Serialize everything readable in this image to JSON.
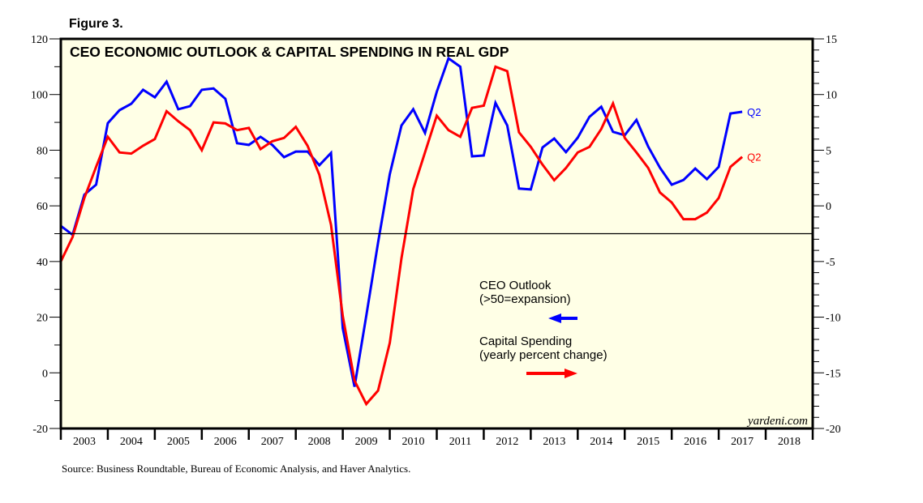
{
  "figure_label": "Figure 3.",
  "source": "Source: Business Roundtable, Bureau of Economic Analysis, and Haver Analytics.",
  "watermark": "yardeni.com",
  "colors": {
    "ceo": "#0000ff",
    "capex": "#ff0000",
    "plot_bg": "#ffffe6",
    "frame": "#000000"
  },
  "chart_data": {
    "type": "line",
    "title": "CEO ECONOMIC OUTLOOK & CAPITAL SPENDING IN REAL GDP",
    "xlabel": "",
    "x_tick_labels": [
      "2003",
      "2004",
      "2005",
      "2006",
      "2007",
      "2008",
      "2009",
      "2010",
      "2011",
      "2012",
      "2013",
      "2014",
      "2015",
      "2016",
      "2017",
      "2018"
    ],
    "x_range": [
      2003.0,
      2019.0
    ],
    "left_axis": {
      "range": [
        -20,
        120
      ],
      "ticks": [
        -20,
        0,
        20,
        40,
        60,
        80,
        100,
        120
      ],
      "tick_labels": [
        "-20",
        "0",
        "20",
        "40",
        "60",
        "80",
        "100",
        "120"
      ],
      "minor_step": 10
    },
    "right_axis": {
      "range": [
        -20,
        15
      ],
      "ticks": [
        -20,
        -15,
        -10,
        -5,
        0,
        5,
        10,
        15
      ],
      "tick_labels": [
        "-20",
        "-15",
        "-10",
        "-5",
        "0",
        "5",
        "10",
        "15"
      ],
      "minor_step": 1
    },
    "reference_line": {
      "axis": "left",
      "value": 50
    },
    "grid": false,
    "series": [
      {
        "name": "CEO Outlook",
        "sublabel": "(>50=expansion)",
        "axis": "left",
        "arrow": "left",
        "end_label": "Q2",
        "start": 2003.0,
        "step": 0.25,
        "values": [
          52.8,
          49.6,
          64,
          67.6,
          89.7,
          94.4,
          96.7,
          101.7,
          99,
          104.6,
          94.7,
          95.8,
          101.7,
          102.2,
          98.5,
          82.5,
          81.9,
          84.8,
          81.9,
          77.5,
          79.5,
          79.5,
          74.6,
          79,
          16,
          -5,
          20.5,
          46.7,
          71.4,
          88.9,
          94.7,
          86.2,
          101,
          113,
          110,
          77.8,
          78.1,
          97,
          88.9,
          66.2,
          65.9,
          81,
          84.2,
          79.3,
          84.5,
          92,
          95.6,
          86.6,
          85.4,
          90.9,
          81.3,
          73.7,
          67.6,
          69.3,
          73.4,
          69.6,
          74,
          93.2,
          93.8
        ]
      },
      {
        "name": "Capital Spending",
        "sublabel": "(yearly percent change)",
        "axis": "right",
        "arrow": "right",
        "end_label": "Q2",
        "start": 2003.0,
        "step": 0.25,
        "values": [
          -5,
          -2.8,
          0.7,
          3.5,
          6.2,
          4.8,
          4.7,
          5.4,
          6,
          8.5,
          7.6,
          6.8,
          5,
          7.5,
          7.4,
          6.8,
          7,
          5.1,
          5.8,
          6.1,
          7.1,
          5.4,
          2.8,
          -1.7,
          -9.9,
          -15.7,
          -17.8,
          -16.6,
          -12.3,
          -4.7,
          1.5,
          4.8,
          8.1,
          6.8,
          6.2,
          8.8,
          9,
          12.5,
          12.1,
          6.6,
          5.3,
          3.7,
          2.3,
          3.4,
          4.8,
          5.3,
          6.9,
          9.2,
          6.1,
          4.8,
          3.4,
          1.2,
          0.3,
          -1.2,
          -1.2,
          -0.6,
          0.7,
          3.5,
          4.4
        ]
      }
    ],
    "legend": "center-right, inside plot"
  }
}
